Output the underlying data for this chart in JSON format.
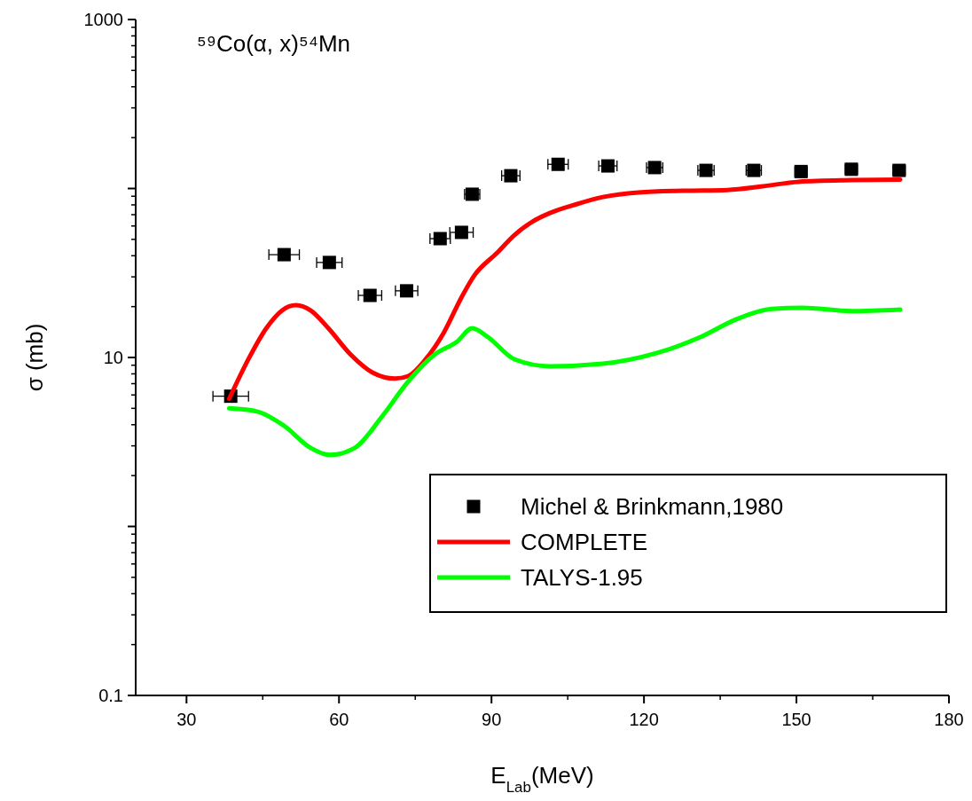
{
  "chart_data": {
    "type": "scatter",
    "title": "⁵⁹Co(α, x)⁵⁴Mn",
    "xlabel": "E$_{Lab}$(MeV)",
    "ylabel": "σ (mb)",
    "xlim": [
      20,
      180
    ],
    "xticks": [
      30,
      60,
      90,
      120,
      150,
      180
    ],
    "ylim": [
      0.1,
      1000
    ],
    "yticks": [
      1000,
      {
        "value": 100,
        "label": null
      },
      10,
      {
        "value": 1,
        "label": null
      },
      0.1
    ],
    "log": "y",
    "grid": false,
    "legend": "bottom right",
    "series": [
      {
        "name": "Michel & Brinkmann,1980",
        "color": "#000000",
        "marker": "square",
        "x": [
          38.7,
          49.2,
          58.1,
          66.1,
          73.3,
          79.9,
          84.1,
          86.2,
          93.8,
          103.1,
          112.9,
          122.1,
          132.2,
          141.6,
          150.9,
          160.8,
          170.2
        ],
        "values": [
          5.9,
          40.6,
          36.5,
          23.3,
          24.8,
          50.5,
          55,
          92.5,
          119,
          139,
          136,
          133,
          128,
          128,
          126,
          130,
          128
        ],
        "xerrors": [
          3.5,
          3,
          2.5,
          2.3,
          2.2,
          2,
          2.3,
          1.5,
          1.8,
          2,
          1.8,
          1.6,
          1.6,
          1.5,
          1.2,
          1.2,
          1.2
        ]
      },
      {
        "name": "COMPLETE",
        "type": "line",
        "color": "#ff0000",
        "line_style": "solid",
        "x": [
          38.4,
          42.2,
          45.7,
          48.8,
          51.5,
          54.4,
          57.9,
          62.3,
          66.6,
          71,
          73.6,
          77.1,
          80.6,
          84.1,
          86.7,
          91.1,
          94.5,
          98,
          101.5,
          106.7,
          111.9,
          118.9,
          127.7,
          136.4,
          143.4,
          150.4,
          160.8,
          170.4
        ],
        "values": [
          5.7,
          9.8,
          14.9,
          19,
          20.4,
          19,
          14.9,
          10.4,
          8.14,
          7.5,
          7.76,
          9.8,
          14,
          22.7,
          30.8,
          41.6,
          53,
          63.5,
          71.6,
          80.7,
          89,
          94.8,
          97,
          98,
          103,
          109.6,
          112,
          113
        ]
      },
      {
        "name": "TALYS-1.95",
        "type": "line",
        "color": "#00ff00",
        "line_style": "solid",
        "x": [
          38.4,
          44,
          49.2,
          54.4,
          58.2,
          63.1,
          68.4,
          73.6,
          78.8,
          83.2,
          86.2,
          89.3,
          94.5,
          101.5,
          111.9,
          122.4,
          131.1,
          138.1,
          145.1,
          151.2,
          160.8,
          170.4
        ],
        "values": [
          5,
          4.78,
          3.94,
          2.92,
          2.65,
          2.92,
          4.45,
          7.2,
          10.4,
          12.4,
          14.9,
          13.2,
          9.76,
          8.87,
          9.19,
          10.6,
          13.2,
          16.8,
          19.4,
          19.7,
          18.8,
          19.2
        ]
      }
    ]
  }
}
